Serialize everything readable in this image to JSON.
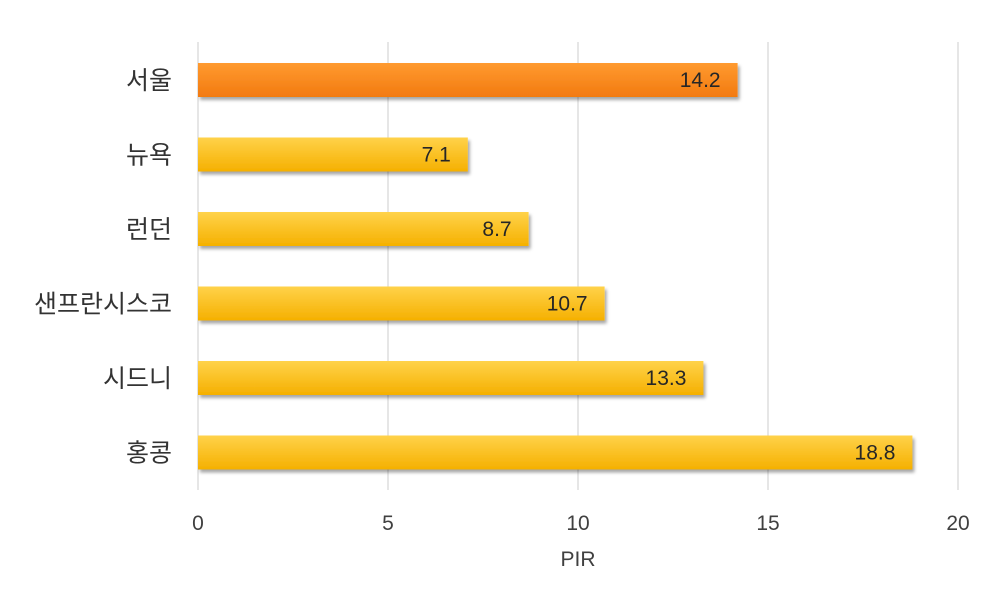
{
  "chart_data": {
    "type": "bar",
    "orientation": "horizontal",
    "categories": [
      "서울",
      "뉴욕",
      "런던",
      "샌프란시스코",
      "시드니",
      "홍콩"
    ],
    "values": [
      14.2,
      7.1,
      8.7,
      10.7,
      13.3,
      18.8
    ],
    "data_labels": [
      "14.2",
      "7.1",
      "8.7",
      "10.7",
      "13.3",
      "18.8"
    ],
    "highlight_index": 0,
    "xlabel": "PIR",
    "ylabel": "",
    "title": "",
    "xlim": [
      0,
      20
    ],
    "x_ticks": [
      0,
      5,
      10,
      15,
      20
    ],
    "x_tick_labels": [
      "0",
      "5",
      "10",
      "15",
      "20"
    ],
    "grid": "vertical",
    "legend": "none",
    "colors": {
      "bar": "#F9BE12",
      "bar_highlight": "#F7861C",
      "grid": "#D9D9D9"
    }
  }
}
